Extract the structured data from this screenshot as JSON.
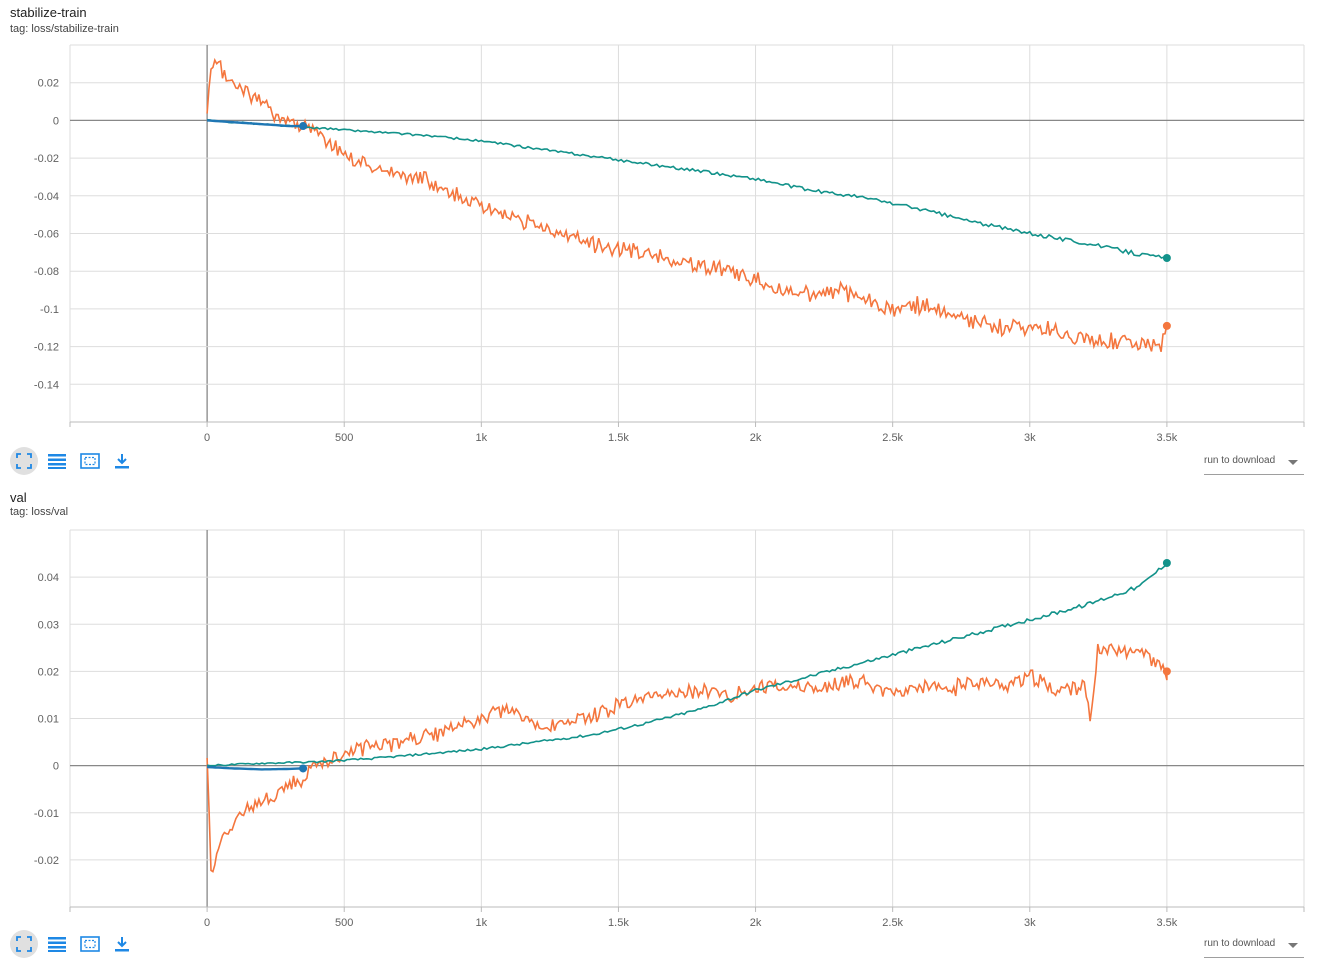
{
  "colors": {
    "orange": "#f4763e",
    "teal": "#12928a",
    "blue": "#1f77b4",
    "grid": "#dddddd",
    "zero": "#888888",
    "icon": "#1e88e5"
  },
  "toolbar": {
    "icons": [
      "fit-domain-icon",
      "data-table-icon",
      "zoom-box-icon",
      "download-icon"
    ],
    "download_label": "run to download"
  },
  "charts": [
    {
      "title": "stabilize-train",
      "tag": "tag: loss/stabilize-train"
    },
    {
      "title": "val",
      "tag": "tag: loss/val"
    }
  ],
  "chart_data": [
    {
      "type": "line",
      "title": "stabilize-train",
      "xlim": [
        -500,
        4000
      ],
      "ylim": [
        -0.16,
        0.04
      ],
      "xticks": [
        0,
        500,
        1000,
        1500,
        2000,
        2500,
        3000,
        3500
      ],
      "xtick_labels": [
        "0",
        "500",
        "1k",
        "1.5k",
        "2k",
        "2.5k",
        "3k",
        "3.5k"
      ],
      "yticks": [
        -0.14,
        -0.12,
        -0.1,
        -0.08,
        -0.06,
        -0.04,
        -0.02,
        0,
        0.02
      ],
      "ytick_labels": [
        "-0.14",
        "-0.12",
        "-0.1",
        "-0.08",
        "-0.06",
        "-0.04",
        "-0.02",
        "0",
        "0.02"
      ],
      "series": [
        {
          "color": "orange",
          "noisy": true,
          "x": [
            0,
            15,
            30,
            60,
            100,
            150,
            200,
            250,
            300,
            350,
            400,
            450,
            500,
            550,
            600,
            700,
            800,
            900,
            1000,
            1100,
            1200,
            1300,
            1400,
            1500,
            1600,
            1700,
            1800,
            1900,
            2000,
            2100,
            2200,
            2300,
            2400,
            2500,
            2600,
            2700,
            2800,
            2900,
            3000,
            3100,
            3200,
            3300,
            3400,
            3480,
            3500
          ],
          "y": [
            0,
            0.028,
            0.03,
            0.025,
            0.019,
            0.015,
            0.009,
            0.004,
            0,
            -0.003,
            -0.007,
            -0.012,
            -0.018,
            -0.022,
            -0.024,
            -0.029,
            -0.031,
            -0.039,
            -0.045,
            -0.052,
            -0.056,
            -0.061,
            -0.065,
            -0.068,
            -0.07,
            -0.075,
            -0.077,
            -0.08,
            -0.085,
            -0.09,
            -0.092,
            -0.09,
            -0.095,
            -0.1,
            -0.098,
            -0.103,
            -0.108,
            -0.11,
            -0.11,
            -0.112,
            -0.116,
            -0.117,
            -0.118,
            -0.12,
            -0.109
          ]
        },
        {
          "color": "teal",
          "noisy": false,
          "x": [
            0,
            200,
            400,
            600,
            800,
            1000,
            1200,
            1400,
            1600,
            1800,
            2000,
            2200,
            2400,
            2600,
            2800,
            3000,
            3200,
            3400,
            3500
          ],
          "y": [
            0,
            -0.002,
            -0.004,
            -0.006,
            -0.008,
            -0.011,
            -0.015,
            -0.019,
            -0.023,
            -0.027,
            -0.031,
            -0.037,
            -0.041,
            -0.047,
            -0.054,
            -0.06,
            -0.065,
            -0.071,
            -0.073
          ]
        },
        {
          "color": "blue",
          "noisy": false,
          "x": [
            0,
            100,
            200,
            300,
            350
          ],
          "y": [
            0,
            -0.001,
            -0.002,
            -0.003,
            -0.003
          ]
        }
      ]
    },
    {
      "type": "line",
      "title": "val",
      "xlim": [
        -500,
        4000
      ],
      "ylim": [
        -0.03,
        0.05
      ],
      "xticks": [
        0,
        500,
        1000,
        1500,
        2000,
        2500,
        3000,
        3500
      ],
      "xtick_labels": [
        "0",
        "500",
        "1k",
        "1.5k",
        "2k",
        "2.5k",
        "3k",
        "3.5k"
      ],
      "yticks": [
        -0.02,
        -0.01,
        0,
        0.01,
        0.02,
        0.03,
        0.04
      ],
      "ytick_labels": [
        "-0.02",
        "-0.01",
        "0",
        "0.01",
        "0.02",
        "0.03",
        "0.04"
      ],
      "series": [
        {
          "color": "orange",
          "noisy": true,
          "x": [
            0,
            5,
            15,
            30,
            60,
            100,
            150,
            200,
            250,
            300,
            350,
            400,
            500,
            600,
            700,
            800,
            900,
            1000,
            1100,
            1200,
            1300,
            1400,
            1500,
            1600,
            1700,
            1800,
            1900,
            2000,
            2100,
            2200,
            2300,
            2400,
            2500,
            2600,
            2700,
            2800,
            2900,
            3000,
            3100,
            3200,
            3220,
            3250,
            3300,
            3400,
            3450,
            3500
          ],
          "y": [
            0.002,
            -0.005,
            -0.025,
            -0.02,
            -0.015,
            -0.012,
            -0.009,
            -0.007,
            -0.006,
            -0.004,
            -0.003,
            0,
            0.003,
            0.004,
            0.005,
            0.006,
            0.008,
            0.01,
            0.012,
            0.008,
            0.009,
            0.01,
            0.013,
            0.014,
            0.015,
            0.016,
            0.015,
            0.016,
            0.017,
            0.016,
            0.017,
            0.018,
            0.015,
            0.017,
            0.016,
            0.018,
            0.017,
            0.019,
            0.016,
            0.017,
            0.009,
            0.025,
            0.024,
            0.025,
            0.022,
            0.02
          ]
        },
        {
          "color": "teal",
          "noisy": false,
          "x": [
            0,
            200,
            400,
            600,
            800,
            1000,
            1200,
            1400,
            1600,
            1800,
            2000,
            2200,
            2400,
            2600,
            2800,
            3000,
            3200,
            3400,
            3500
          ],
          "y": [
            0,
            0.0005,
            0.0008,
            0.0015,
            0.0025,
            0.0035,
            0.005,
            0.0065,
            0.009,
            0.012,
            0.016,
            0.019,
            0.022,
            0.025,
            0.028,
            0.031,
            0.034,
            0.038,
            0.043
          ]
        },
        {
          "color": "blue",
          "noisy": false,
          "x": [
            0,
            100,
            200,
            300,
            350
          ],
          "y": [
            -0.0003,
            -0.0006,
            -0.0008,
            -0.0007,
            -0.0006
          ]
        }
      ]
    }
  ]
}
